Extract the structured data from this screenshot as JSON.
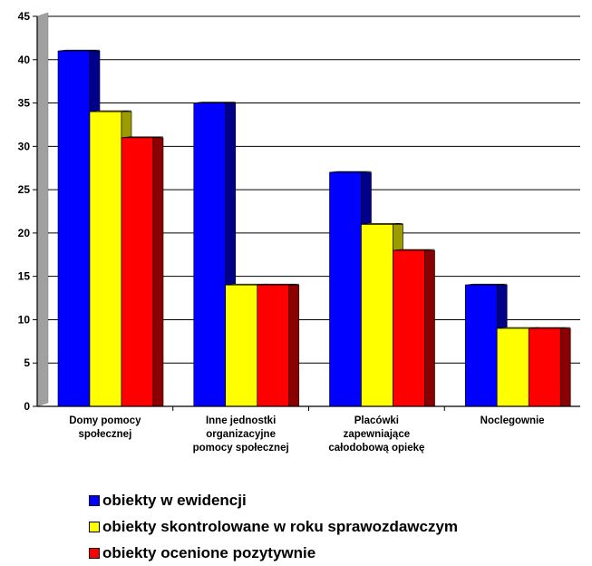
{
  "chart_data": {
    "type": "bar",
    "title": "",
    "xlabel": "",
    "ylabel": "",
    "ylim": [
      0,
      45
    ],
    "yticks": [
      0,
      5,
      10,
      15,
      20,
      25,
      30,
      35,
      40,
      45
    ],
    "grid": true,
    "legend_position": "bottom",
    "three_d": true,
    "categories": [
      [
        "Domy pomocy",
        "społecznej"
      ],
      [
        "Inne jednostki",
        "organizacyjne",
        "pomocy społecznej"
      ],
      [
        "Placówki",
        "zapewniające",
        "całodobową opiekę"
      ],
      [
        "Noclegownie"
      ]
    ],
    "series": [
      {
        "name": "obiekty w ewidencji",
        "color": "#0000ff",
        "side_color": "#00008b",
        "values": [
          41,
          35,
          27,
          14
        ]
      },
      {
        "name": "obiekty skontrolowane w roku sprawozdawczym",
        "color": "#ffff00",
        "side_color": "#9c9c00",
        "values": [
          34,
          14,
          21,
          9
        ]
      },
      {
        "name": "obiekty ocenione pozytywnie",
        "color": "#ff0000",
        "side_color": "#8b0000",
        "values": [
          31,
          14,
          18,
          9
        ]
      }
    ]
  }
}
